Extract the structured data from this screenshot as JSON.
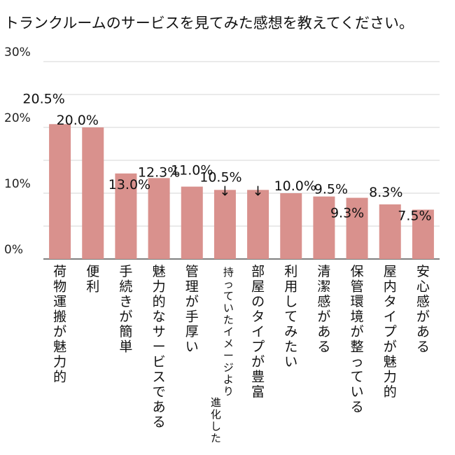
{
  "chart_data": {
    "type": "bar",
    "title": "トランクルームのサービスを見てみた感想を教えてください。",
    "xlabel": "",
    "ylabel": "",
    "ylim": [
      0,
      30
    ],
    "yticks": [
      "0%",
      "10%",
      "20%",
      "30%"
    ],
    "grid": true,
    "categories": [
      "荷物運搬が魅力的",
      "便利",
      "手続きが簡単",
      "魅力的なサービスである",
      "管理が手厚い",
      "持っていたイメージより進化した",
      "部屋のタイプが豊富",
      "利用してみたい",
      "清潔感がある",
      "保管環境が整っている",
      "屋内タイプが魅力的",
      "安心感がある"
    ],
    "category_lines": [
      [
        "荷物運搬が魅力的"
      ],
      [
        "便利"
      ],
      [
        "手続きが簡単"
      ],
      [
        "魅力的なサービスである"
      ],
      [
        "管理が手厚い"
      ],
      [
        "持っていたイメージより",
        "進化した"
      ],
      [
        "部屋のタイプが豊富"
      ],
      [
        "利用してみたい"
      ],
      [
        "清潔感がある"
      ],
      [
        "保管環境が整っている"
      ],
      [
        "屋内タイプが魅力的"
      ],
      [
        "安心感がある"
      ]
    ],
    "values": [
      20.5,
      20.0,
      13.0,
      12.3,
      11.0,
      10.5,
      10.5,
      10.0,
      9.5,
      9.3,
      8.3,
      7.5
    ],
    "value_labels": [
      "20.5%",
      "20.0%",
      "13.0%",
      "12.3%",
      "11.0%",
      "10.5%",
      "",
      "10.0%",
      "9.5%",
      "9.3%",
      "8.3%",
      "7.5%"
    ],
    "bar_color": "#d9918d",
    "arrow_glyph": "↓"
  }
}
